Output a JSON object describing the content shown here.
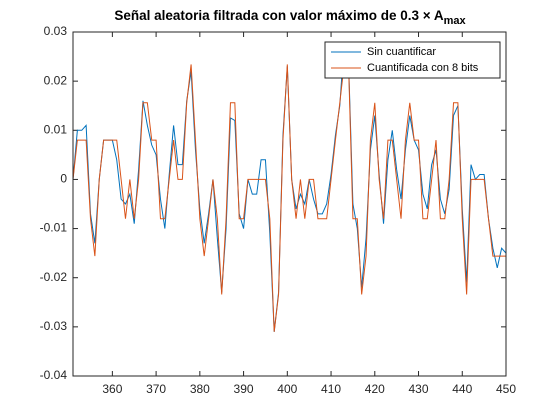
{
  "chart_data": {
    "type": "line",
    "title": "Señal aleatoria filtrada con valor máximo de 0.3 × A",
    "title_subscript": "max",
    "x": [
      351,
      352,
      353,
      354,
      355,
      356,
      357,
      358,
      359,
      360,
      361,
      362,
      363,
      364,
      365,
      366,
      367,
      368,
      369,
      370,
      371,
      372,
      373,
      374,
      375,
      376,
      377,
      378,
      379,
      380,
      381,
      382,
      383,
      384,
      385,
      386,
      387,
      388,
      389,
      390,
      391,
      392,
      393,
      394,
      395,
      396,
      397,
      398,
      399,
      400,
      401,
      402,
      403,
      404,
      405,
      406,
      407,
      408,
      409,
      410,
      411,
      412,
      413,
      414,
      415,
      416,
      417,
      418,
      419,
      420,
      421,
      422,
      423,
      424,
      425,
      426,
      427,
      428,
      429,
      430,
      431,
      432,
      433,
      434,
      435,
      436,
      437,
      438,
      439,
      440,
      441,
      442,
      443,
      444,
      445,
      446,
      447,
      448,
      449,
      450
    ],
    "series": [
      {
        "name": "Sin cuantificar",
        "color": "#0072bd",
        "values": [
          0.0,
          0.01,
          0.01,
          0.011,
          -0.007,
          -0.013,
          0.0,
          0.008,
          0.008,
          0.008,
          0.004,
          -0.004,
          -0.005,
          -0.003,
          -0.009,
          0.002,
          0.016,
          0.011,
          0.007,
          0.005,
          -0.004,
          -0.01,
          0.001,
          0.011,
          0.003,
          0.003,
          0.016,
          0.022,
          0.006,
          -0.006,
          -0.013,
          -0.007,
          0.0,
          -0.012,
          -0.023,
          -0.01,
          0.0125,
          0.012,
          -0.007,
          -0.01,
          0.0,
          -0.003,
          -0.003,
          0.004,
          0.004,
          -0.011,
          -0.031,
          -0.023,
          0.009,
          0.023,
          0.0,
          -0.006,
          -0.003,
          -0.005,
          0.0,
          -0.004,
          -0.007,
          -0.007,
          -0.005,
          0.001,
          0.009,
          0.015,
          0.028,
          0.024,
          -0.005,
          -0.01,
          -0.022,
          -0.012,
          0.006,
          0.013,
          0.001,
          -0.009,
          0.004,
          0.01,
          0.002,
          -0.004,
          0.006,
          0.013,
          0.008,
          0.006,
          -0.003,
          -0.006,
          0.003,
          0.006,
          -0.004,
          -0.007,
          -0.002,
          0.013,
          0.015,
          -0.006,
          -0.021,
          0.003,
          0.0,
          0.001,
          0.001,
          -0.008,
          -0.014,
          -0.018,
          -0.014,
          -0.015
        ]
      },
      {
        "name": "Cuantificada con 8 bits",
        "color": "#d95319",
        "values": [
          0.0,
          0.008,
          0.008,
          0.008,
          -0.008,
          -0.0156,
          0.0,
          0.008,
          0.008,
          0.008,
          0.008,
          0.0,
          -0.008,
          0.0,
          -0.008,
          0.0,
          0.0156,
          0.0156,
          0.008,
          0.008,
          -0.008,
          -0.008,
          0.0,
          0.008,
          0.0,
          0.0,
          0.0156,
          0.0234,
          0.008,
          -0.008,
          -0.0156,
          -0.008,
          0.0,
          -0.008,
          -0.0234,
          -0.008,
          0.0156,
          0.0156,
          -0.008,
          -0.008,
          0.0,
          0.0,
          0.0,
          0.0,
          0.0,
          -0.008,
          -0.031,
          -0.0234,
          0.008,
          0.0234,
          0.0,
          -0.008,
          0.0,
          -0.008,
          0.0,
          0.0,
          -0.008,
          -0.008,
          -0.008,
          0.0,
          0.008,
          0.0156,
          0.0234,
          0.0234,
          -0.008,
          -0.008,
          -0.0234,
          -0.0156,
          0.008,
          0.0156,
          0.0,
          -0.008,
          0.008,
          0.008,
          0.0,
          -0.008,
          0.008,
          0.0156,
          0.008,
          0.008,
          -0.008,
          -0.008,
          0.0,
          0.008,
          -0.008,
          -0.008,
          0.0,
          0.0156,
          0.0156,
          -0.008,
          -0.0234,
          0.0,
          0.0,
          0.0,
          0.0,
          -0.008,
          -0.0156,
          -0.0156,
          -0.0156,
          -0.0156
        ]
      }
    ],
    "xlim": [
      351,
      450
    ],
    "ylim": [
      -0.04,
      0.03
    ],
    "xticks": [
      360,
      370,
      380,
      390,
      400,
      410,
      420,
      430,
      440,
      450
    ],
    "yticks": [
      -0.04,
      -0.03,
      -0.02,
      -0.01,
      0,
      0.01,
      0.02,
      0.03
    ],
    "legend": "upper right"
  }
}
